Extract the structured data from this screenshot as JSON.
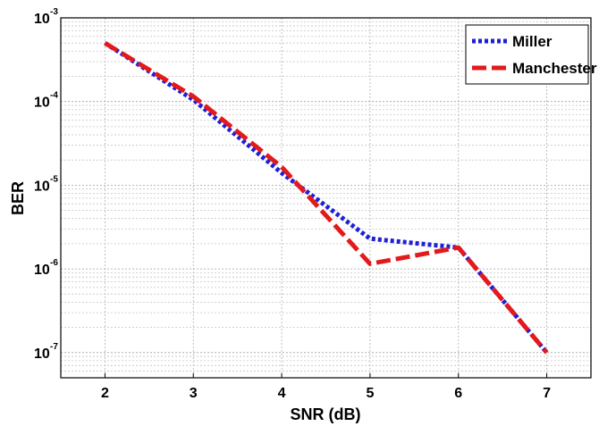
{
  "chart_data": {
    "type": "line",
    "title": "",
    "xlabel": "SNR (dB)",
    "ylabel": "BER",
    "xlim": [
      1.5,
      7.5
    ],
    "ylim": [
      5e-08,
      0.001
    ],
    "yscale": "log",
    "grid": true,
    "legend_position": "top-right",
    "x_ticks": [
      2,
      3,
      4,
      5,
      6,
      7
    ],
    "y_ticks": [
      {
        "value": 0.001,
        "base": "10",
        "exp": "-3"
      },
      {
        "value": 0.0001,
        "base": "10",
        "exp": "-4"
      },
      {
        "value": 1e-05,
        "base": "10",
        "exp": "-5"
      },
      {
        "value": 1e-06,
        "base": "10",
        "exp": "-6"
      },
      {
        "value": 1e-07,
        "base": "10",
        "exp": "-7"
      }
    ],
    "x": [
      2,
      3,
      4,
      5,
      6,
      7
    ],
    "series": [
      {
        "name": "Miller",
        "values": [
          0.0005,
          0.000105,
          1.4e-05,
          2.3e-06,
          1.8e-06,
          1e-07
        ],
        "color": "#1f1fd6",
        "style": "dotted"
      },
      {
        "name": "Manchester",
        "values": [
          0.0005,
          0.000115,
          1.65e-05,
          1.15e-06,
          1.8e-06,
          1e-07
        ],
        "color": "#e31a1c",
        "style": "dashed"
      }
    ]
  }
}
